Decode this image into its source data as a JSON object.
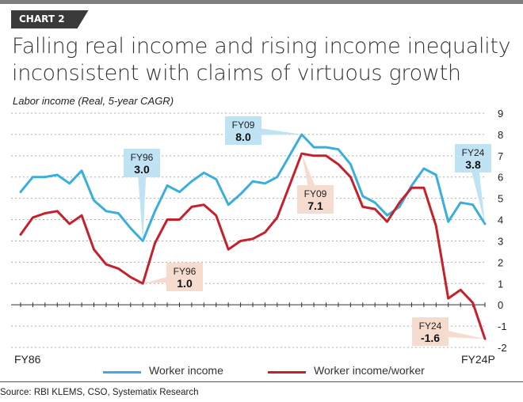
{
  "header": {
    "tag": "CHART 2",
    "title_line1": "Falling real income and rising income inequality",
    "title_line2": "inconsistent with claims of virtuous growth",
    "subtitle": "Labor income (Real, 5-year CAGR)"
  },
  "source": "Source: RBI KLEMS, CSO, Systematix Research",
  "legend": {
    "series1": "Worker income",
    "series2": "Worker income/worker"
  },
  "colors": {
    "series1": "#3aaedc",
    "series2": "#c8202a",
    "callout_blue": "#bfe3f2",
    "callout_red": "#f6dccf",
    "grid": "#b0b0b0"
  },
  "chart_data": {
    "type": "line",
    "x_start_label": "FY86",
    "x_end_label": "FY24P",
    "y_ticks": [
      "9",
      "8",
      "7",
      "6",
      "5",
      "4",
      "3",
      "2",
      "1",
      "0",
      "-1",
      "-2"
    ],
    "ylim": [
      -2,
      9
    ],
    "grid": true,
    "legend_position": "bottom",
    "series": [
      {
        "name": "Worker income",
        "color": "#3aaedc",
        "values": [
          5.3,
          6.0,
          6.0,
          6.1,
          5.7,
          6.3,
          4.9,
          4.4,
          4.3,
          3.6,
          3.0,
          4.4,
          5.6,
          5.3,
          5.8,
          6.2,
          5.9,
          4.7,
          5.2,
          5.8,
          5.7,
          6.0,
          7.0,
          8.0,
          7.4,
          7.4,
          7.3,
          6.6,
          5.1,
          4.8,
          4.2,
          4.6,
          5.6,
          6.4,
          6.1,
          3.9,
          4.8,
          4.7,
          3.8
        ]
      },
      {
        "name": "Worker income/worker",
        "color": "#c8202a",
        "values": [
          3.3,
          4.1,
          4.3,
          4.4,
          3.8,
          4.2,
          2.6,
          1.9,
          1.7,
          1.3,
          1.0,
          2.9,
          4.0,
          4.0,
          4.6,
          4.7,
          4.2,
          2.6,
          3.0,
          3.1,
          3.4,
          4.1,
          5.6,
          7.1,
          7.0,
          7.0,
          6.6,
          6.0,
          4.6,
          4.5,
          3.9,
          4.8,
          5.5,
          5.5,
          3.7,
          0.3,
          0.7,
          0.1,
          -1.6
        ]
      }
    ],
    "annotations": [
      {
        "series": 0,
        "index": 10,
        "label": "FY96",
        "value": "3.0"
      },
      {
        "series": 0,
        "index": 23,
        "label": "FY09",
        "value": "8.0"
      },
      {
        "series": 0,
        "index": 38,
        "label": "FY24",
        "value": "3.8"
      },
      {
        "series": 1,
        "index": 10,
        "label": "FY96",
        "value": "1.0"
      },
      {
        "series": 1,
        "index": 23,
        "label": "FY09",
        "value": "7.1"
      },
      {
        "series": 1,
        "index": 38,
        "label": "FY24",
        "value": "-1.6"
      }
    ]
  }
}
